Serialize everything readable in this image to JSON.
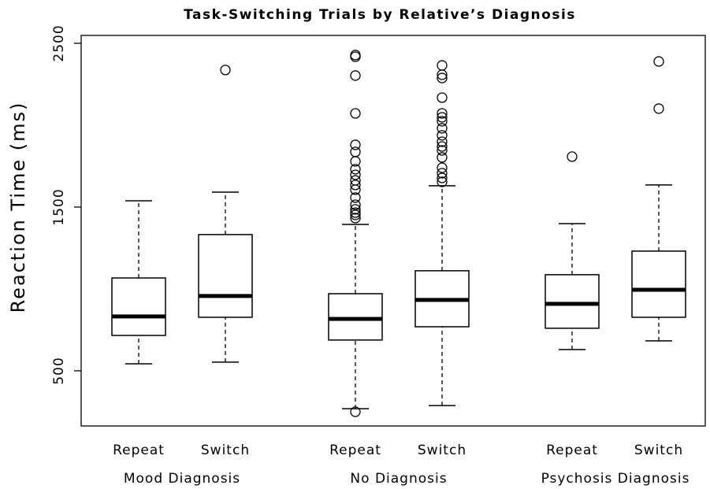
{
  "chart_data": {
    "type": "box",
    "title": "Task-Switching Trials by Relative’s Diagnosis",
    "y_label": "Reaction Time (ms)",
    "categories": [
      "Repeat",
      "Switch",
      "Repeat",
      "Switch",
      "Repeat",
      "Switch"
    ],
    "groups": [
      "Mood Diagnosis",
      "No Diagnosis",
      "Psychosis Diagnosis"
    ],
    "ylim": [
      163,
      2548
    ],
    "yticks": [
      500,
      1500,
      2500
    ],
    "color": "#000000",
    "boxes": [
      {
        "low": 543,
        "q1": 716,
        "median": 832,
        "q3": 1067,
        "high": 1538,
        "outliers": []
      },
      {
        "low": 553,
        "q1": 827,
        "median": 957,
        "q3": 1332,
        "high": 1591,
        "outliers": [
          2337
        ]
      },
      {
        "low": 269,
        "q1": 688,
        "median": 817,
        "q3": 971,
        "high": 1394,
        "outliers": [
          2428,
          2418,
          2303,
          2072,
          1880,
          1837,
          1779,
          1731,
          1697,
          1663,
          1635,
          1606,
          1558,
          1514,
          1486,
          1466,
          1452,
          1433,
          250
        ]
      },
      {
        "low": 288,
        "q1": 769,
        "median": 933,
        "q3": 1111,
        "high": 1630,
        "outliers": [
          2365,
          2308,
          2288,
          2168,
          2072,
          2048,
          2024,
          1981,
          1938,
          1899,
          1870,
          1846,
          1803,
          1740,
          1707,
          1678,
          1654
        ]
      },
      {
        "low": 630,
        "q1": 760,
        "median": 909,
        "q3": 1087,
        "high": 1399,
        "outliers": [
          1808
        ]
      },
      {
        "low": 683,
        "q1": 827,
        "median": 995,
        "q3": 1231,
        "high": 1635,
        "outliers": [
          2389,
          2101
        ]
      }
    ]
  }
}
